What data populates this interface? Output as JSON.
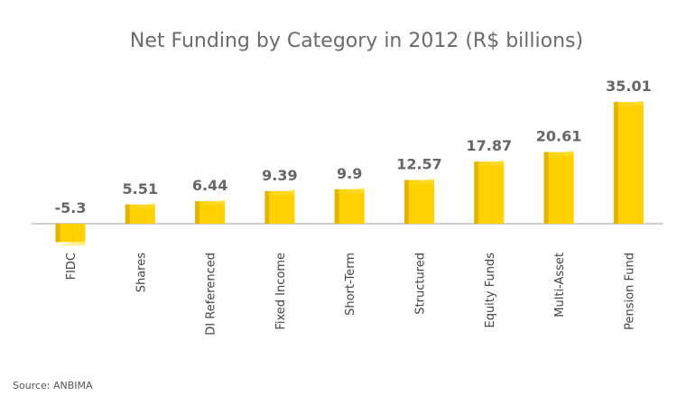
{
  "chart_data": {
    "type": "bar",
    "title": "Net Funding by Category in 2012 (R$ billions)",
    "categories": [
      "FIDC",
      "Shares",
      "DI Referenced",
      "Fixed Income",
      "Short-Term",
      "Structured",
      "Equity Funds",
      "Multi-Asset",
      "Pension Fund"
    ],
    "values": [
      -5.3,
      5.51,
      6.44,
      9.39,
      9.9,
      12.57,
      17.87,
      20.61,
      35.01
    ],
    "value_labels": [
      "-5.3",
      "5.51",
      "6.44",
      "9.39",
      "9.9",
      "12.57",
      "17.87",
      "20.61",
      "35.01"
    ],
    "xlabel": "",
    "ylabel": "",
    "grid": false,
    "legend": "none",
    "colors": {
      "bar": "#FFD100",
      "bar_side": "#E2B400",
      "bar_top": "#FFE040",
      "baseline": "#888888"
    }
  },
  "source": "Source: ANBIMA"
}
